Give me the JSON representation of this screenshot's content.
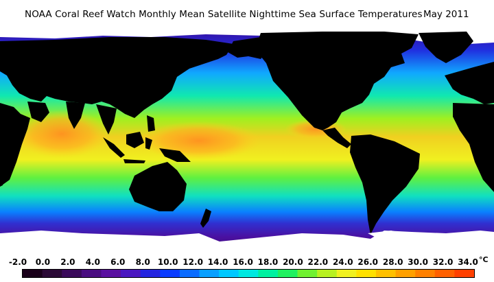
{
  "header": {
    "title": "NOAA Coral Reef Watch Monthly Mean Satellite Nighttime Sea Surface Temperatures",
    "date": "May 2011"
  },
  "legend": {
    "unit": "°C",
    "ticks": [
      "-2.0",
      "0.0",
      "2.0",
      "4.0",
      "6.0",
      "8.0",
      "10.0",
      "12.0",
      "14.0",
      "16.0",
      "18.0",
      "20.0",
      "22.0",
      "24.0",
      "26.0",
      "28.0",
      "30.0",
      "32.0",
      "34.0"
    ],
    "colors": [
      "#1a001a",
      "#2b0a36",
      "#3a0a5a",
      "#4a0d80",
      "#5a10a0",
      "#4a17c0",
      "#2424e0",
      "#0b3cff",
      "#0b6cff",
      "#0aa0ff",
      "#00c8ff",
      "#00e8e0",
      "#00f0a0",
      "#20f060",
      "#70f030",
      "#b8f020",
      "#f0f020",
      "#ffe000",
      "#ffc000",
      "#ffa000",
      "#ff8000",
      "#ff6000",
      "#ff4000"
    ]
  },
  "map": {
    "colors": {
      "land": "#000000",
      "ice": "#ffffff",
      "polar_south": "#3a0a6a",
      "cold": "#2020d0",
      "cool": "#0a90ff",
      "mild": "#00e0c0",
      "warm": "#30f060",
      "hot": "#f0e020",
      "hottest": "#ff9a20"
    }
  }
}
